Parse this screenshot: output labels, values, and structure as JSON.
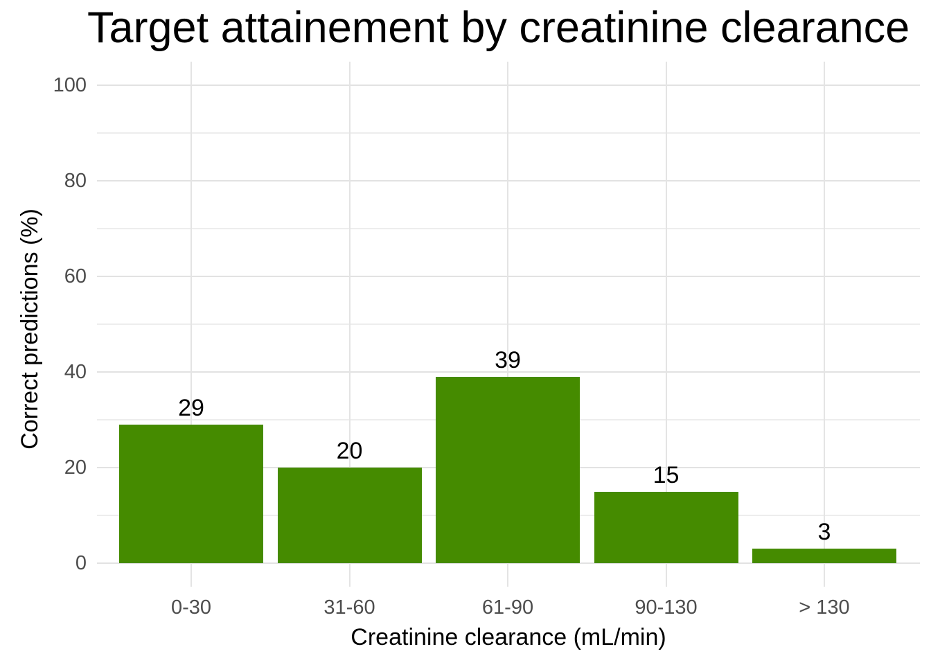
{
  "chart": {
    "title": "Target attainement by creatinine clearance",
    "y_axis": {
      "label": "Correct predictions (%)",
      "ticks": [
        0,
        20,
        40,
        60,
        80,
        100
      ],
      "minor_ticks": [
        10,
        30,
        50,
        70,
        90
      ],
      "max": 100
    },
    "x_axis": {
      "label": "Creatinine clearance (mL/min)",
      "categories": [
        "0-30",
        "31-60",
        "61-90",
        "90-130",
        "> 130"
      ]
    },
    "values": [
      29,
      20,
      39,
      15,
      3
    ],
    "bar_labels": [
      "29",
      "20",
      "39",
      "15",
      "3"
    ],
    "colors": {
      "bar": "#458B00",
      "grid_major": "#E2E2E2",
      "grid_minor": "#EDEDED",
      "tick_label": "#4D4D4D",
      "text": "#000000",
      "background": "#FFFFFF"
    }
  },
  "chart_data": {
    "type": "bar",
    "title": "Target attainement by creatinine clearance",
    "xlabel": "Creatinine clearance (mL/min)",
    "ylabel": "Correct predictions (%)",
    "categories": [
      "0-30",
      "31-60",
      "61-90",
      "90-130",
      "> 130"
    ],
    "values": [
      29,
      20,
      39,
      15,
      3
    ],
    "data_labels": [
      29,
      20,
      39,
      15,
      3
    ],
    "ylim": [
      0,
      100
    ],
    "yticks": [
      0,
      20,
      40,
      60,
      80,
      100
    ],
    "grid": "horizontal major every 20 and minor every 10, vertical major at each category center, light gray on white background",
    "legend": "none",
    "bar_color": "#458B00",
    "style": "ggplot2 theme_minimal, single series, value labels above bars, title clipped at right image edge"
  }
}
